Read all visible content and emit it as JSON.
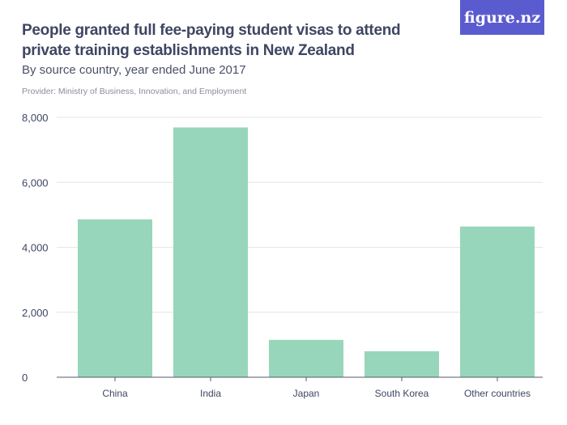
{
  "header": {
    "title": "People granted full fee-paying student visas to attend private training establishments in New Zealand",
    "subtitle": "By source country, year ended June 2017",
    "provider": "Provider: Ministry of Business, Innovation, and Employment",
    "logo": "figure.nz"
  },
  "chart_data": {
    "type": "bar",
    "title": "People granted full fee-paying student visas to attend private training establishments in New Zealand",
    "subtitle": "By source country, year ended June 2017",
    "categories": [
      "China",
      "India",
      "Japan",
      "South Korea",
      "Other countries"
    ],
    "values": [
      4860,
      7690,
      1150,
      800,
      4640
    ],
    "ylim": [
      0,
      8000
    ],
    "yticks": [
      0,
      2000,
      4000,
      6000,
      8000
    ],
    "ytick_labels": [
      "0",
      "2,000",
      "4,000",
      "6,000",
      "8,000"
    ],
    "grid": true,
    "colors": {
      "bar": "#98d6bb",
      "grid": "#e6e6e6",
      "axis": "#555b6e"
    }
  }
}
